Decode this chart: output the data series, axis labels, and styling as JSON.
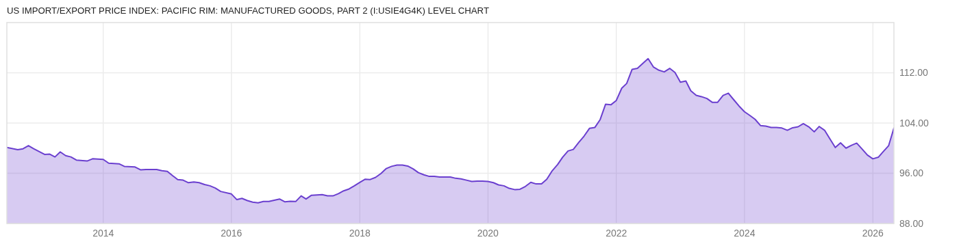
{
  "chart_data": {
    "type": "area",
    "title": "US IMPORT/EXPORT PRICE INDEX: PACIFIC RIM: MANUFACTURED GOODS, PART 2 (I:USIE4G4K) LEVEL CHART",
    "x": [
      "2012-07",
      "2012-09",
      "2012-10",
      "2012-11",
      "2012-12",
      "2013-02",
      "2013-03",
      "2013-04",
      "2013-05",
      "2013-06",
      "2013-07",
      "2013-08",
      "2013-10",
      "2013-11",
      "2014-01",
      "2014-02",
      "2014-04",
      "2014-05",
      "2014-07",
      "2014-08",
      "2014-09",
      "2014-11",
      "2014-12",
      "2015-01",
      "2015-02",
      "2015-03",
      "2015-04",
      "2015-05",
      "2015-06",
      "2015-07",
      "2015-08",
      "2015-09",
      "2015-10",
      "2015-11",
      "2016-01",
      "2016-02",
      "2016-03",
      "2016-04",
      "2016-05",
      "2016-06",
      "2016-07",
      "2016-08",
      "2016-10",
      "2016-11",
      "2016-12",
      "2017-01",
      "2017-02",
      "2017-03",
      "2017-04",
      "2017-06",
      "2017-07",
      "2017-08",
      "2017-09",
      "2017-10",
      "2017-11",
      "2017-12",
      "2018-01",
      "2018-02",
      "2018-03",
      "2018-04",
      "2018-05",
      "2018-06",
      "2018-07",
      "2018-08",
      "2018-09",
      "2018-10",
      "2018-11",
      "2018-12",
      "2019-01",
      "2019-02",
      "2019-03",
      "2019-04",
      "2019-06",
      "2019-07",
      "2019-08",
      "2019-09",
      "2019-10",
      "2019-11",
      "2019-12",
      "2020-01",
      "2020-02",
      "2020-03",
      "2020-04",
      "2020-05",
      "2020-06",
      "2020-07",
      "2020-08",
      "2020-09",
      "2020-10",
      "2020-11",
      "2020-12",
      "2021-01",
      "2021-02",
      "2021-03",
      "2021-04",
      "2021-05",
      "2021-06",
      "2021-07",
      "2021-08",
      "2021-09",
      "2021-10",
      "2021-11",
      "2021-12",
      "2022-01",
      "2022-02",
      "2022-03",
      "2022-04",
      "2022-05",
      "2022-06",
      "2022-07",
      "2022-08",
      "2022-09",
      "2022-10",
      "2022-11",
      "2022-12",
      "2023-01",
      "2023-02",
      "2023-03",
      "2023-04",
      "2023-05",
      "2023-06",
      "2023-07",
      "2023-08",
      "2023-09",
      "2023-10",
      "2023-11",
      "2023-12",
      "2024-01",
      "2024-02",
      "2024-03",
      "2024-04",
      "2024-05",
      "2024-06",
      "2024-07",
      "2024-08",
      "2024-09",
      "2024-10",
      "2024-11",
      "2024-12",
      "2025-01",
      "2025-02",
      "2025-03",
      "2025-04",
      "2025-05",
      "2025-06",
      "2025-07",
      "2025-08",
      "2025-09",
      "2025-10",
      "2025-11",
      "2025-12",
      "2026-01",
      "2026-02",
      "2026-03",
      "2026-04",
      "2026-05"
    ],
    "series": [
      {
        "color": "#6a3fcf",
        "values": [
          100.1,
          99.75,
          99.9,
          100.4,
          99.9,
          99.0,
          99.05,
          98.6,
          99.4,
          98.8,
          98.6,
          98.1,
          97.95,
          98.3,
          98.2,
          97.6,
          97.5,
          97.1,
          97.0,
          96.55,
          96.6,
          96.6,
          96.4,
          96.3,
          95.6,
          95.0,
          94.9,
          94.5,
          94.6,
          94.5,
          94.2,
          94.0,
          93.65,
          93.1,
          92.7,
          91.8,
          92.0,
          91.65,
          91.4,
          91.3,
          91.5,
          91.5,
          91.9,
          91.45,
          91.55,
          91.5,
          92.4,
          91.9,
          92.5,
          92.6,
          92.4,
          92.4,
          92.75,
          93.2,
          93.5,
          94.0,
          94.55,
          95.05,
          95.0,
          95.35,
          95.95,
          96.75,
          97.1,
          97.3,
          97.3,
          97.15,
          96.7,
          96.1,
          95.75,
          95.5,
          95.5,
          95.4,
          95.4,
          95.2,
          95.1,
          94.9,
          94.7,
          94.75,
          94.75,
          94.7,
          94.5,
          94.15,
          94.0,
          93.6,
          93.4,
          93.45,
          93.9,
          94.55,
          94.3,
          94.3,
          95.05,
          96.4,
          97.4,
          98.55,
          99.55,
          99.8,
          100.9,
          101.9,
          103.15,
          103.3,
          104.55,
          107.0,
          106.9,
          107.6,
          109.55,
          110.3,
          112.55,
          112.7,
          113.5,
          114.25,
          112.9,
          112.4,
          112.15,
          112.7,
          112.05,
          110.5,
          110.7,
          109.15,
          108.4,
          108.2,
          107.9,
          107.3,
          107.3,
          108.4,
          108.75,
          107.7,
          106.7,
          105.8,
          105.2,
          104.6,
          103.6,
          103.5,
          103.3,
          103.3,
          103.2,
          102.85,
          103.25,
          103.4,
          103.9,
          103.4,
          102.6,
          103.45,
          102.85,
          101.5,
          100.1,
          100.85,
          100.0,
          100.45,
          100.8,
          99.85,
          98.9,
          98.3,
          98.55,
          99.45,
          100.4,
          103.2
        ]
      }
    ],
    "xlim": [
      "2012-07",
      "2026-05"
    ],
    "xticks": [
      "2014",
      "2016",
      "2018",
      "2020",
      "2022",
      "2024",
      "2026"
    ],
    "ylim": [
      88,
      120
    ],
    "yticks": [
      {
        "value": 88,
        "label": "88.00"
      },
      {
        "value": 96,
        "label": "96.00"
      },
      {
        "value": 104,
        "label": "104.00"
      },
      {
        "value": 112,
        "label": "112.00"
      }
    ],
    "grid": true
  }
}
